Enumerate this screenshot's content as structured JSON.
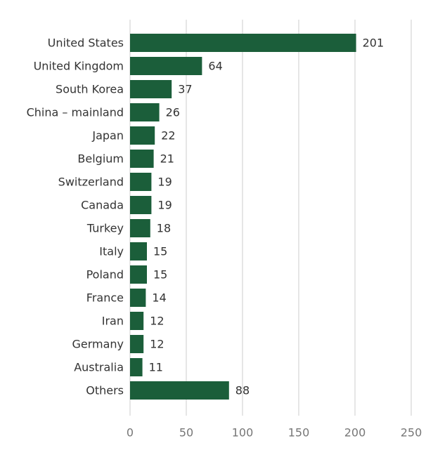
{
  "chart_data": {
    "type": "bar",
    "orientation": "horizontal",
    "categories": [
      "United States",
      "United Kingdom",
      "South Korea",
      "China – mainland",
      "Japan",
      "Belgium",
      "Switzerland",
      "Canada",
      "Turkey",
      "Italy",
      "Poland",
      "France",
      "Iran",
      "Germany",
      "Australia",
      "Others"
    ],
    "values": [
      201,
      64,
      37,
      26,
      22,
      21,
      19,
      19,
      18,
      15,
      15,
      14,
      12,
      12,
      11,
      88
    ],
    "color": "#1b5e3a",
    "xlim": [
      0,
      250
    ],
    "xticks": [
      0,
      50,
      100,
      150,
      200,
      250
    ],
    "grid": true
  }
}
